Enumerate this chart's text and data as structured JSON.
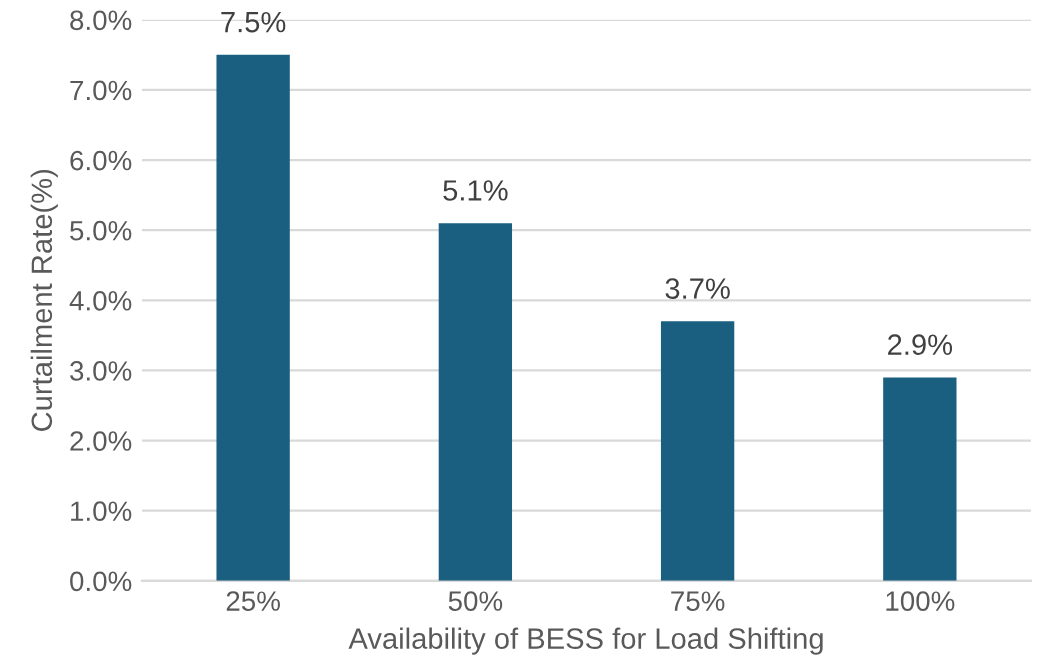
{
  "chart_data": {
    "type": "bar",
    "xlabel": "Availability of BESS for Load Shifting",
    "ylabel": "Curtailment Rate(%)",
    "categories": [
      "25%",
      "50%",
      "75%",
      "100%"
    ],
    "values": [
      7.5,
      5.1,
      3.7,
      2.9
    ],
    "value_labels": [
      "7.5%",
      "5.1%",
      "3.7%",
      "2.9%"
    ],
    "color": "#1b5f80",
    "ylim": [
      0,
      8
    ],
    "yticks": [
      {
        "value": 0,
        "label": "0.0%"
      },
      {
        "value": 1,
        "label": "1.0%"
      },
      {
        "value": 2,
        "label": "2.0%"
      },
      {
        "value": 3,
        "label": "3.0%"
      },
      {
        "value": 4,
        "label": "4.0%"
      },
      {
        "value": 5,
        "label": "5.0%"
      },
      {
        "value": 6,
        "label": "6.0%"
      },
      {
        "value": 7,
        "label": "7.0%"
      },
      {
        "value": 8,
        "label": "8.0%"
      }
    ],
    "grid": "y",
    "legend": false
  }
}
